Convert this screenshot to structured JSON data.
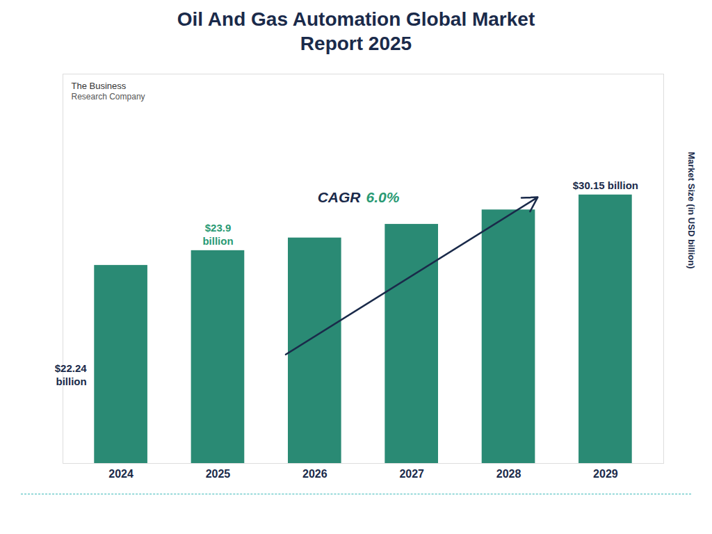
{
  "chart_data": {
    "type": "bar",
    "title": "Oil And Gas Automation Global Market\nReport 2025",
    "ylabel": "Market Size (in USD billion)",
    "categories": [
      "2024",
      "2025",
      "2026",
      "2027",
      "2028",
      "2029"
    ],
    "values": [
      22.24,
      23.9,
      25.32,
      26.85,
      28.47,
      30.15
    ],
    "color": "#2a8a74",
    "ylim": [
      0,
      43.7175
    ],
    "yticks": [],
    "grid": false,
    "tick_labels": "x",
    "annotations": [
      {
        "text": "$22.24\nbillion",
        "category": "2024",
        "color": "#1a2a4a"
      },
      {
        "text": "$23.9\nbillion",
        "category": "2025",
        "color": "#2a9a74"
      },
      {
        "text": "$30.15 billion",
        "category": "2029",
        "color": "#1a2a4a"
      },
      {
        "text": "CAGR",
        "color": "#1a2a4a"
      },
      {
        "text": "6.0%",
        "color": "#2a9a74"
      }
    ],
    "logo": [
      "The Business",
      "Research Company"
    ]
  }
}
